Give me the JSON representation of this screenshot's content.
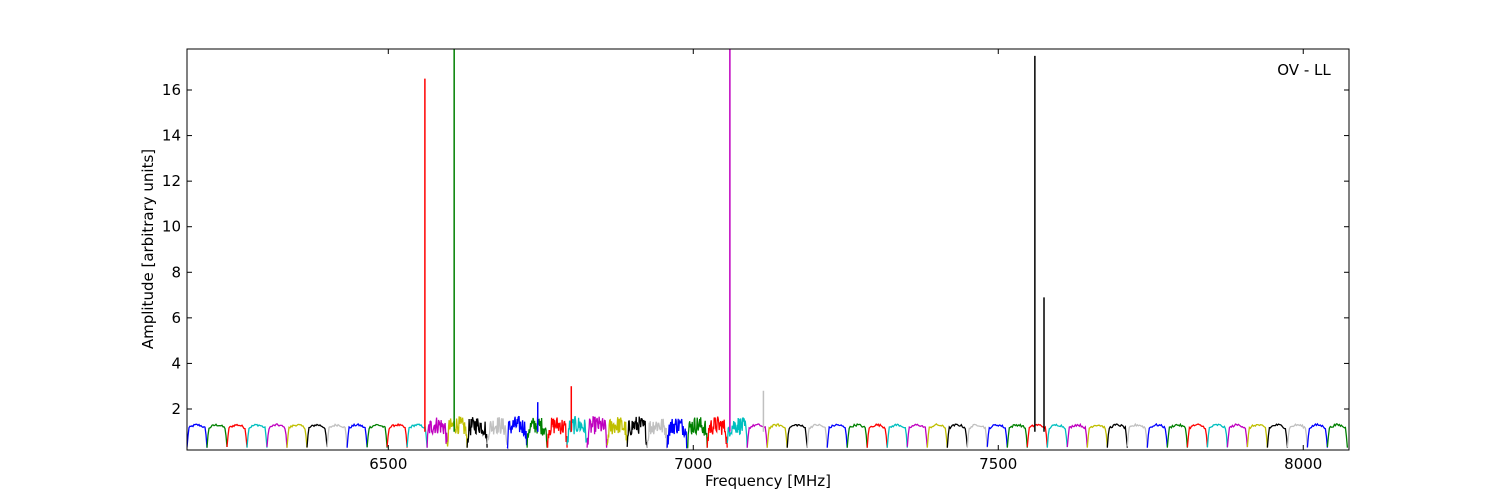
{
  "chart_data": {
    "type": "line",
    "title": "",
    "xlabel": "Frequency [MHz]",
    "ylabel": "Amplitude [arbitrary units]",
    "annotation": "OV - LL",
    "xlim": [
      6170,
      8075
    ],
    "ylim": [
      0.2,
      17.8
    ],
    "xticks": [
      6500,
      7000,
      7500,
      8000
    ],
    "yticks": [
      2,
      4,
      6,
      8,
      10,
      12,
      14,
      16
    ],
    "grid": false,
    "legend": "none",
    "series_palette": [
      "#0000ff",
      "#008000",
      "#ff0000",
      "#00bfbf",
      "#bf00bf",
      "#bfbf00",
      "#000000",
      "#c0c0c0"
    ],
    "channels": {
      "count": 58,
      "start_mhz": 6170,
      "width_mhz": 32.8,
      "typical_max": 1.3,
      "min": 0.3
    },
    "noisy_region_mhz": [
      6555,
      7090
    ],
    "spikes": [
      {
        "x": 6560,
        "y": 16.5,
        "color": "#ff0000"
      },
      {
        "x": 6608,
        "y": 17.8,
        "color": "#008000"
      },
      {
        "x": 7060,
        "y": 17.8,
        "color": "#bf00bf"
      },
      {
        "x": 7560,
        "y": 17.5,
        "color": "#000000"
      },
      {
        "x": 7575,
        "y": 6.9,
        "color": "#000000"
      },
      {
        "x": 6800,
        "y": 3.0,
        "color": "#ff0000"
      },
      {
        "x": 6745,
        "y": 2.3,
        "color": "#0000ff"
      },
      {
        "x": 7115,
        "y": 2.8,
        "color": "#c0c0c0"
      }
    ]
  }
}
